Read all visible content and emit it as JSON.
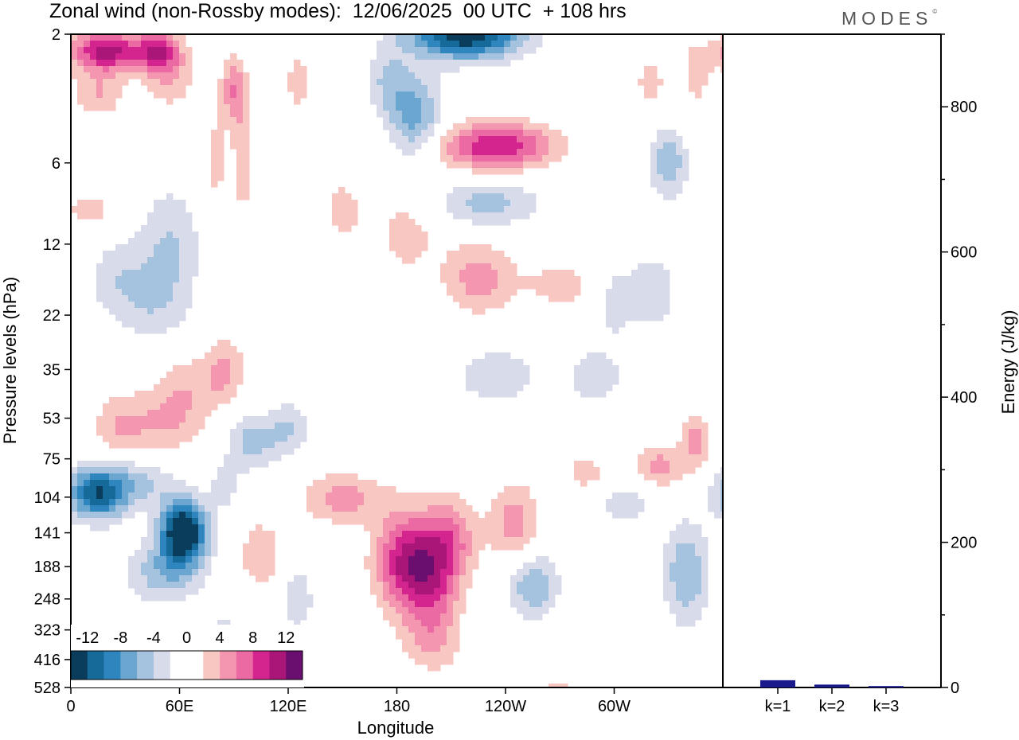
{
  "title": "Zonal wind (non-Rossby modes):  12/06/2025  00 UTC  + 108 hrs",
  "logo": "MODES",
  "logo_mark": "©",
  "colors": {
    "levels": [
      "#0a3d5c",
      "#166a9a",
      "#2f86bf",
      "#6aa6cf",
      "#a5c3df",
      "#d8dcea",
      "#ffffff",
      "#ffffff",
      "#f9c7c2",
      "#f596b0",
      "#ec6aa3",
      "#d4258f",
      "#aa1578",
      "#6a0f6f"
    ],
    "energy_bar": "#1a1a8c"
  },
  "chart_data": [
    {
      "type": "heatmap",
      "title": "Zonal wind (non-Rossby modes):  12/06/2025  00 UTC  + 108 hrs",
      "xlabel": "Longitude",
      "ylabel": "Pressure levels (hPa)",
      "x_ticks": [
        "0",
        "60E",
        "120E",
        "180",
        "120W",
        "60W"
      ],
      "x_tick_degrees": [
        0,
        60,
        120,
        180,
        240,
        300
      ],
      "xlim": [
        0,
        360
      ],
      "y_ticks": [
        "2",
        "6",
        "12",
        "22",
        "35",
        "53",
        "75",
        "104",
        "141",
        "188",
        "248",
        "323",
        "416",
        "528"
      ],
      "y_scale": "log",
      "colorbar_labels": [
        "-12",
        "-8",
        "-4",
        "0",
        "4",
        "8",
        "12"
      ],
      "colorbar_levels": [
        -14,
        -12,
        -10,
        -8,
        -6,
        -4,
        -2,
        0,
        2,
        4,
        6,
        8,
        10,
        12,
        14
      ],
      "blobs": [
        {
          "lon": 20,
          "p": 2.3,
          "sx": 14,
          "sy": 0.12,
          "v": 11
        },
        {
          "lon": 48,
          "p": 2.3,
          "sx": 8,
          "sy": 0.12,
          "v": 8
        },
        {
          "lon": 54,
          "p": 2.8,
          "sx": 10,
          "sy": 0.2,
          "v": 4
        },
        {
          "lon": 15,
          "p": 3.3,
          "sx": 10,
          "sy": 0.15,
          "v": 4
        },
        {
          "lon": 90,
          "p": 3.2,
          "sx": 5,
          "sy": 0.2,
          "v": 6
        },
        {
          "lon": 95,
          "p": 5.8,
          "sx": 4,
          "sy": 0.3,
          "v": 4
        },
        {
          "lon": 80,
          "p": 6.0,
          "sx": 4,
          "sy": 0.3,
          "v": 3
        },
        {
          "lon": 125,
          "p": 3.0,
          "sx": 5,
          "sy": 0.2,
          "v": 3
        },
        {
          "lon": 175,
          "p": 3.0,
          "sx": 8,
          "sy": 0.2,
          "v": -4
        },
        {
          "lon": 190,
          "p": 4.0,
          "sx": 10,
          "sy": 0.25,
          "v": -7
        },
        {
          "lon": 218,
          "p": 2.0,
          "sx": 22,
          "sy": 0.15,
          "v": -14
        },
        {
          "lon": 235,
          "p": 5.2,
          "sx": 22,
          "sy": 0.14,
          "v": 10
        },
        {
          "lon": 230,
          "p": 8.5,
          "sx": 20,
          "sy": 0.14,
          "v": -5
        },
        {
          "lon": 330,
          "p": 6.0,
          "sx": 7,
          "sy": 0.2,
          "v": -6
        },
        {
          "lon": 320,
          "p": 3.0,
          "sx": 6,
          "sy": 0.15,
          "v": 3
        },
        {
          "lon": 345,
          "p": 2.8,
          "sx": 6,
          "sy": 0.2,
          "v": 3
        },
        {
          "lon": 10,
          "p": 9.0,
          "sx": 10,
          "sy": 0.12,
          "v": 3
        },
        {
          "lon": 150,
          "p": 9.0,
          "sx": 8,
          "sy": 0.2,
          "v": 3
        },
        {
          "lon": 185,
          "p": 11.0,
          "sx": 12,
          "sy": 0.25,
          "v": 3
        },
        {
          "lon": 225,
          "p": 16.0,
          "sx": 14,
          "sy": 0.22,
          "v": 5
        },
        {
          "lon": 270,
          "p": 17.0,
          "sx": 14,
          "sy": 0.15,
          "v": 3
        },
        {
          "lon": 320,
          "p": 18.0,
          "sx": 10,
          "sy": 0.22,
          "v": -4
        },
        {
          "lon": 55,
          "p": 12.0,
          "sx": 12,
          "sy": 0.35,
          "v": -4
        },
        {
          "lon": 25,
          "p": 16.0,
          "sx": 12,
          "sy": 0.25,
          "v": -3
        },
        {
          "lon": 45,
          "p": 20.0,
          "sx": 14,
          "sy": 0.25,
          "v": -3
        },
        {
          "lon": 65,
          "p": 40.0,
          "sx": 12,
          "sy": 0.2,
          "v": 3
        },
        {
          "lon": 85,
          "p": 35.0,
          "sx": 8,
          "sy": 0.2,
          "v": 4
        },
        {
          "lon": 50,
          "p": 55.0,
          "sx": 16,
          "sy": 0.2,
          "v": 4
        },
        {
          "lon": 25,
          "p": 58.0,
          "sx": 10,
          "sy": 0.2,
          "v": 3
        },
        {
          "lon": 235,
          "p": 37.0,
          "sx": 20,
          "sy": 0.22,
          "v": -3
        },
        {
          "lon": 290,
          "p": 37.0,
          "sx": 12,
          "sy": 0.2,
          "v": -3
        },
        {
          "lon": 15,
          "p": 100.0,
          "sx": 12,
          "sy": 0.16,
          "v": -12
        },
        {
          "lon": 40,
          "p": 90.0,
          "sx": 12,
          "sy": 0.14,
          "v": -4
        },
        {
          "lon": 75,
          "p": 95.0,
          "sx": 8,
          "sy": 0.16,
          "v": 7
        },
        {
          "lon": 62,
          "p": 140.0,
          "sx": 9,
          "sy": 0.2,
          "v": -16
        },
        {
          "lon": 78,
          "p": 95.0,
          "sx": 9,
          "sy": 0.16,
          "v": -8
        },
        {
          "lon": 100,
          "p": 65.0,
          "sx": 10,
          "sy": 0.16,
          "v": -5
        },
        {
          "lon": 120,
          "p": 58.0,
          "sx": 8,
          "sy": 0.16,
          "v": -4
        },
        {
          "lon": 50,
          "p": 200.0,
          "sx": 14,
          "sy": 0.18,
          "v": -5
        },
        {
          "lon": 85,
          "p": 380.0,
          "sx": 7,
          "sy": 0.3,
          "v": -3
        },
        {
          "lon": 125,
          "p": 250.0,
          "sx": 6,
          "sy": 0.18,
          "v": -4
        },
        {
          "lon": 150,
          "p": 105.0,
          "sx": 16,
          "sy": 0.15,
          "v": 5
        },
        {
          "lon": 105,
          "p": 170.0,
          "sx": 8,
          "sy": 0.2,
          "v": 4
        },
        {
          "lon": 185,
          "p": 180.0,
          "sx": 12,
          "sy": 0.3,
          "v": 10
        },
        {
          "lon": 200,
          "p": 220.0,
          "sx": 10,
          "sy": 0.3,
          "v": 6
        },
        {
          "lon": 210,
          "p": 150.0,
          "sx": 10,
          "sy": 0.25,
          "v": 6
        },
        {
          "lon": 245,
          "p": 130.0,
          "sx": 10,
          "sy": 0.25,
          "v": 5
        },
        {
          "lon": 200,
          "p": 360.0,
          "sx": 12,
          "sy": 0.2,
          "v": 3
        },
        {
          "lon": 255,
          "p": 220.0,
          "sx": 10,
          "sy": 0.2,
          "v": -6
        },
        {
          "lon": 325,
          "p": 80.0,
          "sx": 10,
          "sy": 0.12,
          "v": 5
        },
        {
          "lon": 345,
          "p": 65.0,
          "sx": 6,
          "sy": 0.15,
          "v": 5
        },
        {
          "lon": 285,
          "p": 85.0,
          "sx": 10,
          "sy": 0.12,
          "v": 3
        },
        {
          "lon": 340,
          "p": 200.0,
          "sx": 9,
          "sy": 0.3,
          "v": -6
        },
        {
          "lon": 305,
          "p": 110.0,
          "sx": 12,
          "sy": 0.15,
          "v": -3
        },
        {
          "lon": 270,
          "p": 600.0,
          "sx": 8,
          "sy": 0.2,
          "v": 3
        },
        {
          "lon": 300,
          "p": 20.0,
          "sx": 6,
          "sy": 0.2,
          "v": -3
        }
      ]
    },
    {
      "type": "bar",
      "ylabel": "Energy (J/kg)",
      "categories": [
        "k=1",
        "k=2",
        "k=3"
      ],
      "values": [
        10,
        4,
        2
      ],
      "ylim": [
        0,
        900
      ],
      "y_ticks": [
        0,
        200,
        400,
        600,
        800
      ]
    }
  ]
}
